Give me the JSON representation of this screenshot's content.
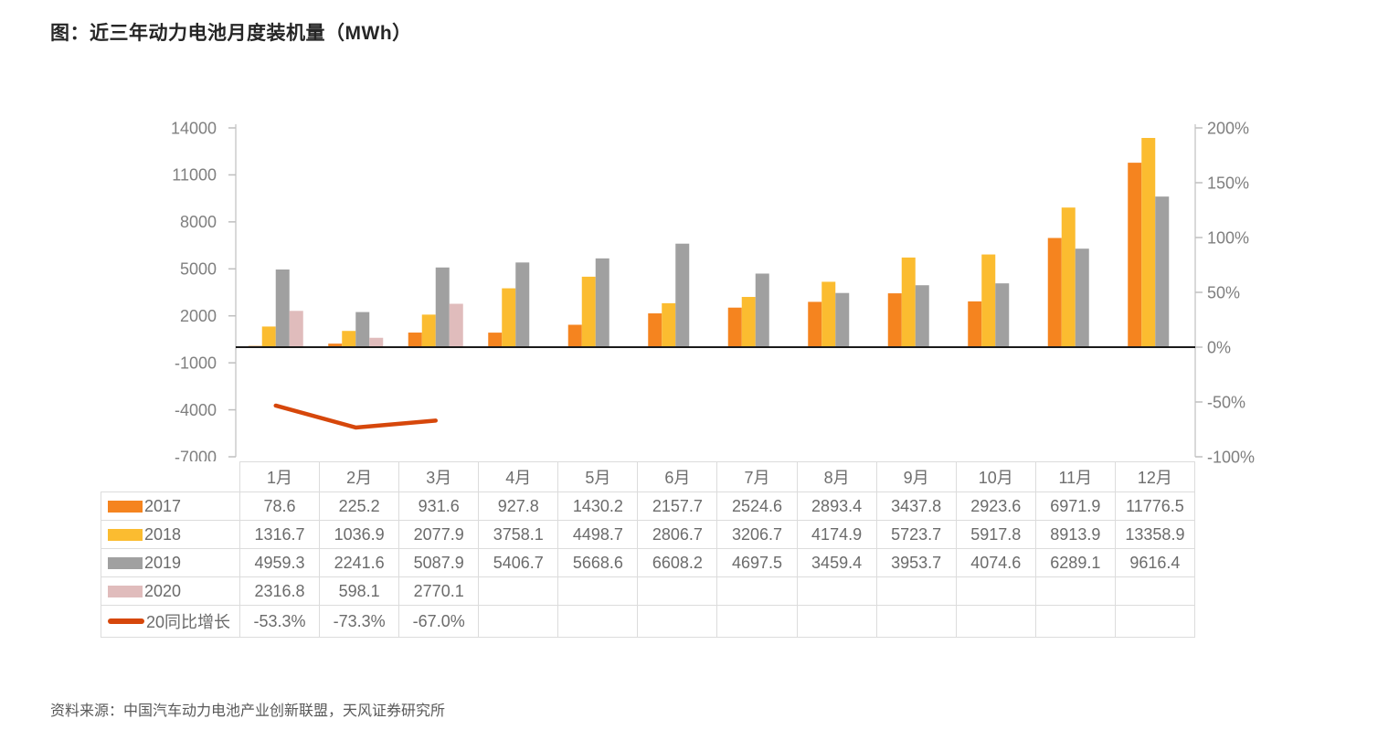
{
  "title": "图：近三年动力电池月度装机量（MWh）",
  "source": "资料来源：中国汽车动力电池产业创新联盟，天风证券研究所",
  "chart_data": {
    "type": "bar",
    "subtype": "grouped-bar-with-line-combo",
    "categories": [
      "1月",
      "2月",
      "3月",
      "4月",
      "5月",
      "6月",
      "7月",
      "8月",
      "9月",
      "10月",
      "11月",
      "12月"
    ],
    "series": [
      {
        "name": "2017",
        "chart": "bar",
        "axis": "left",
        "color": "#F5841F",
        "values": [
          78.6,
          225.2,
          931.6,
          927.8,
          1430.2,
          2157.7,
          2524.6,
          2893.4,
          3437.8,
          2923.6,
          6971.9,
          11776.5
        ]
      },
      {
        "name": "2018",
        "chart": "bar",
        "axis": "left",
        "color": "#FBBC30",
        "values": [
          1316.7,
          1036.9,
          2077.9,
          3758.1,
          4498.7,
          2806.7,
          3206.7,
          4174.9,
          5723.7,
          5917.8,
          8913.9,
          13358.9
        ]
      },
      {
        "name": "2019",
        "chart": "bar",
        "axis": "left",
        "color": "#A0A0A0",
        "values": [
          4959.3,
          2241.6,
          5087.9,
          5406.7,
          5668.6,
          6608.2,
          4697.5,
          3459.4,
          3953.7,
          4074.6,
          6289.1,
          9616.4
        ]
      },
      {
        "name": "2020",
        "chart": "bar",
        "axis": "left",
        "color": "#E0BCBC",
        "values": [
          2316.8,
          598.1,
          2770.1,
          null,
          null,
          null,
          null,
          null,
          null,
          null,
          null,
          null
        ]
      },
      {
        "name": "20同比增长",
        "chart": "line",
        "axis": "right",
        "color": "#D6470B",
        "values": [
          -53.3,
          -73.3,
          -67.0,
          null,
          null,
          null,
          null,
          null,
          null,
          null,
          null,
          null
        ]
      }
    ],
    "left_axis": {
      "min": -7000,
      "max": 14000,
      "tick_step": 3000,
      "tick_labels": [
        "14000",
        "11000",
        "8000",
        "5000",
        "2000",
        "-1000",
        "-4000",
        "-7000"
      ]
    },
    "right_axis": {
      "min": -100,
      "max": 200,
      "tick_step": 50,
      "tick_labels": [
        "200%",
        "150%",
        "100%",
        "50%",
        "0%",
        "-50%",
        "-100%"
      ]
    },
    "grid": false,
    "legend_position": "table-left-column",
    "ylabel": "",
    "xlabel": ""
  },
  "table": {
    "corner": "",
    "columns": [
      "1月",
      "2月",
      "3月",
      "4月",
      "5月",
      "6月",
      "7月",
      "8月",
      "9月",
      "10月",
      "11月",
      "12月"
    ],
    "rows": [
      {
        "label": "2017",
        "swatch": "bar",
        "color": "#F5841F",
        "cells": [
          "78.6",
          "225.2",
          "931.6",
          "927.8",
          "1430.2",
          "2157.7",
          "2524.6",
          "2893.4",
          "3437.8",
          "2923.6",
          "6971.9",
          "11776.5"
        ]
      },
      {
        "label": "2018",
        "swatch": "bar",
        "color": "#FBBC30",
        "cells": [
          "1316.7",
          "1036.9",
          "2077.9",
          "3758.1",
          "4498.7",
          "2806.7",
          "3206.7",
          "4174.9",
          "5723.7",
          "5917.8",
          "8913.9",
          "13358.9"
        ]
      },
      {
        "label": "2019",
        "swatch": "bar",
        "color": "#A0A0A0",
        "cells": [
          "4959.3",
          "2241.6",
          "5087.9",
          "5406.7",
          "5668.6",
          "6608.2",
          "4697.5",
          "3459.4",
          "3953.7",
          "4074.6",
          "6289.1",
          "9616.4"
        ]
      },
      {
        "label": "2020",
        "swatch": "bar",
        "color": "#E0BCBC",
        "cells": [
          "2316.8",
          "598.1",
          "2770.1",
          "",
          "",
          "",
          "",
          "",
          "",
          "",
          "",
          ""
        ]
      },
      {
        "label": "20同比增长",
        "swatch": "line",
        "color": "#D6470B",
        "cells": [
          "-53.3%",
          "-73.3%",
          "-67.0%",
          "",
          "",
          "",
          "",
          "",
          "",
          "",
          "",
          ""
        ]
      }
    ]
  },
  "colors": {
    "axis_line": "#D9D9D9",
    "tick_mark": "#BFBFBF",
    "zero_line": "#1A1A1A",
    "table_border": "#DCDCDC",
    "axis_text": "#7F7F7F"
  }
}
